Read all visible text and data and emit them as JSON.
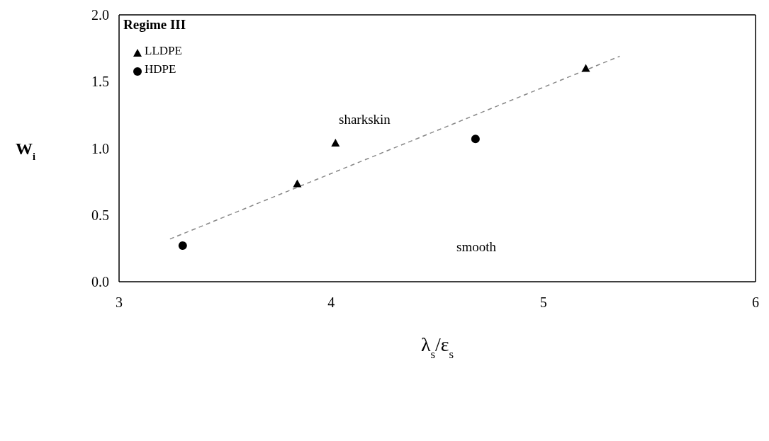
{
  "chart_data": {
    "type": "scatter",
    "xlabel": "λ$_{s}$/ε$_{s}$",
    "ylabel": "W$_{i}$",
    "legend_title": "Regime III",
    "legend": "top left",
    "grid": false,
    "xlim": [
      3,
      6
    ],
    "xticks": [
      3,
      4,
      5,
      6
    ],
    "ylim": [
      0,
      2
    ],
    "yticks": [
      {
        "value": 0,
        "label": "0.0"
      },
      {
        "value": 0.5,
        "label": "0.5"
      },
      {
        "value": 1,
        "label": "1.0"
      },
      {
        "value": 1.5,
        "label": "1.5"
      },
      {
        "value": 2,
        "label": "2.0"
      }
    ],
    "series": [
      {
        "name": "LLDPE",
        "type": "scatter",
        "marker": "triangle",
        "color": "#000000",
        "x": [
          3.84,
          4.02,
          5.2
        ],
        "values": [
          0.735,
          1.04,
          1.6
        ]
      },
      {
        "name": "HDPE",
        "type": "scatter",
        "marker": "circle",
        "color": "#000000",
        "x": [
          3.3,
          4.68
        ],
        "values": [
          0.27,
          1.07
        ]
      },
      {
        "type": "line",
        "color": "#888888",
        "line_style": "dashed",
        "marker": "none",
        "x": [
          3.24,
          5.36
        ],
        "values": [
          0.32,
          1.69
        ]
      }
    ],
    "annotations": [
      "sharkskin",
      "smooth"
    ]
  }
}
